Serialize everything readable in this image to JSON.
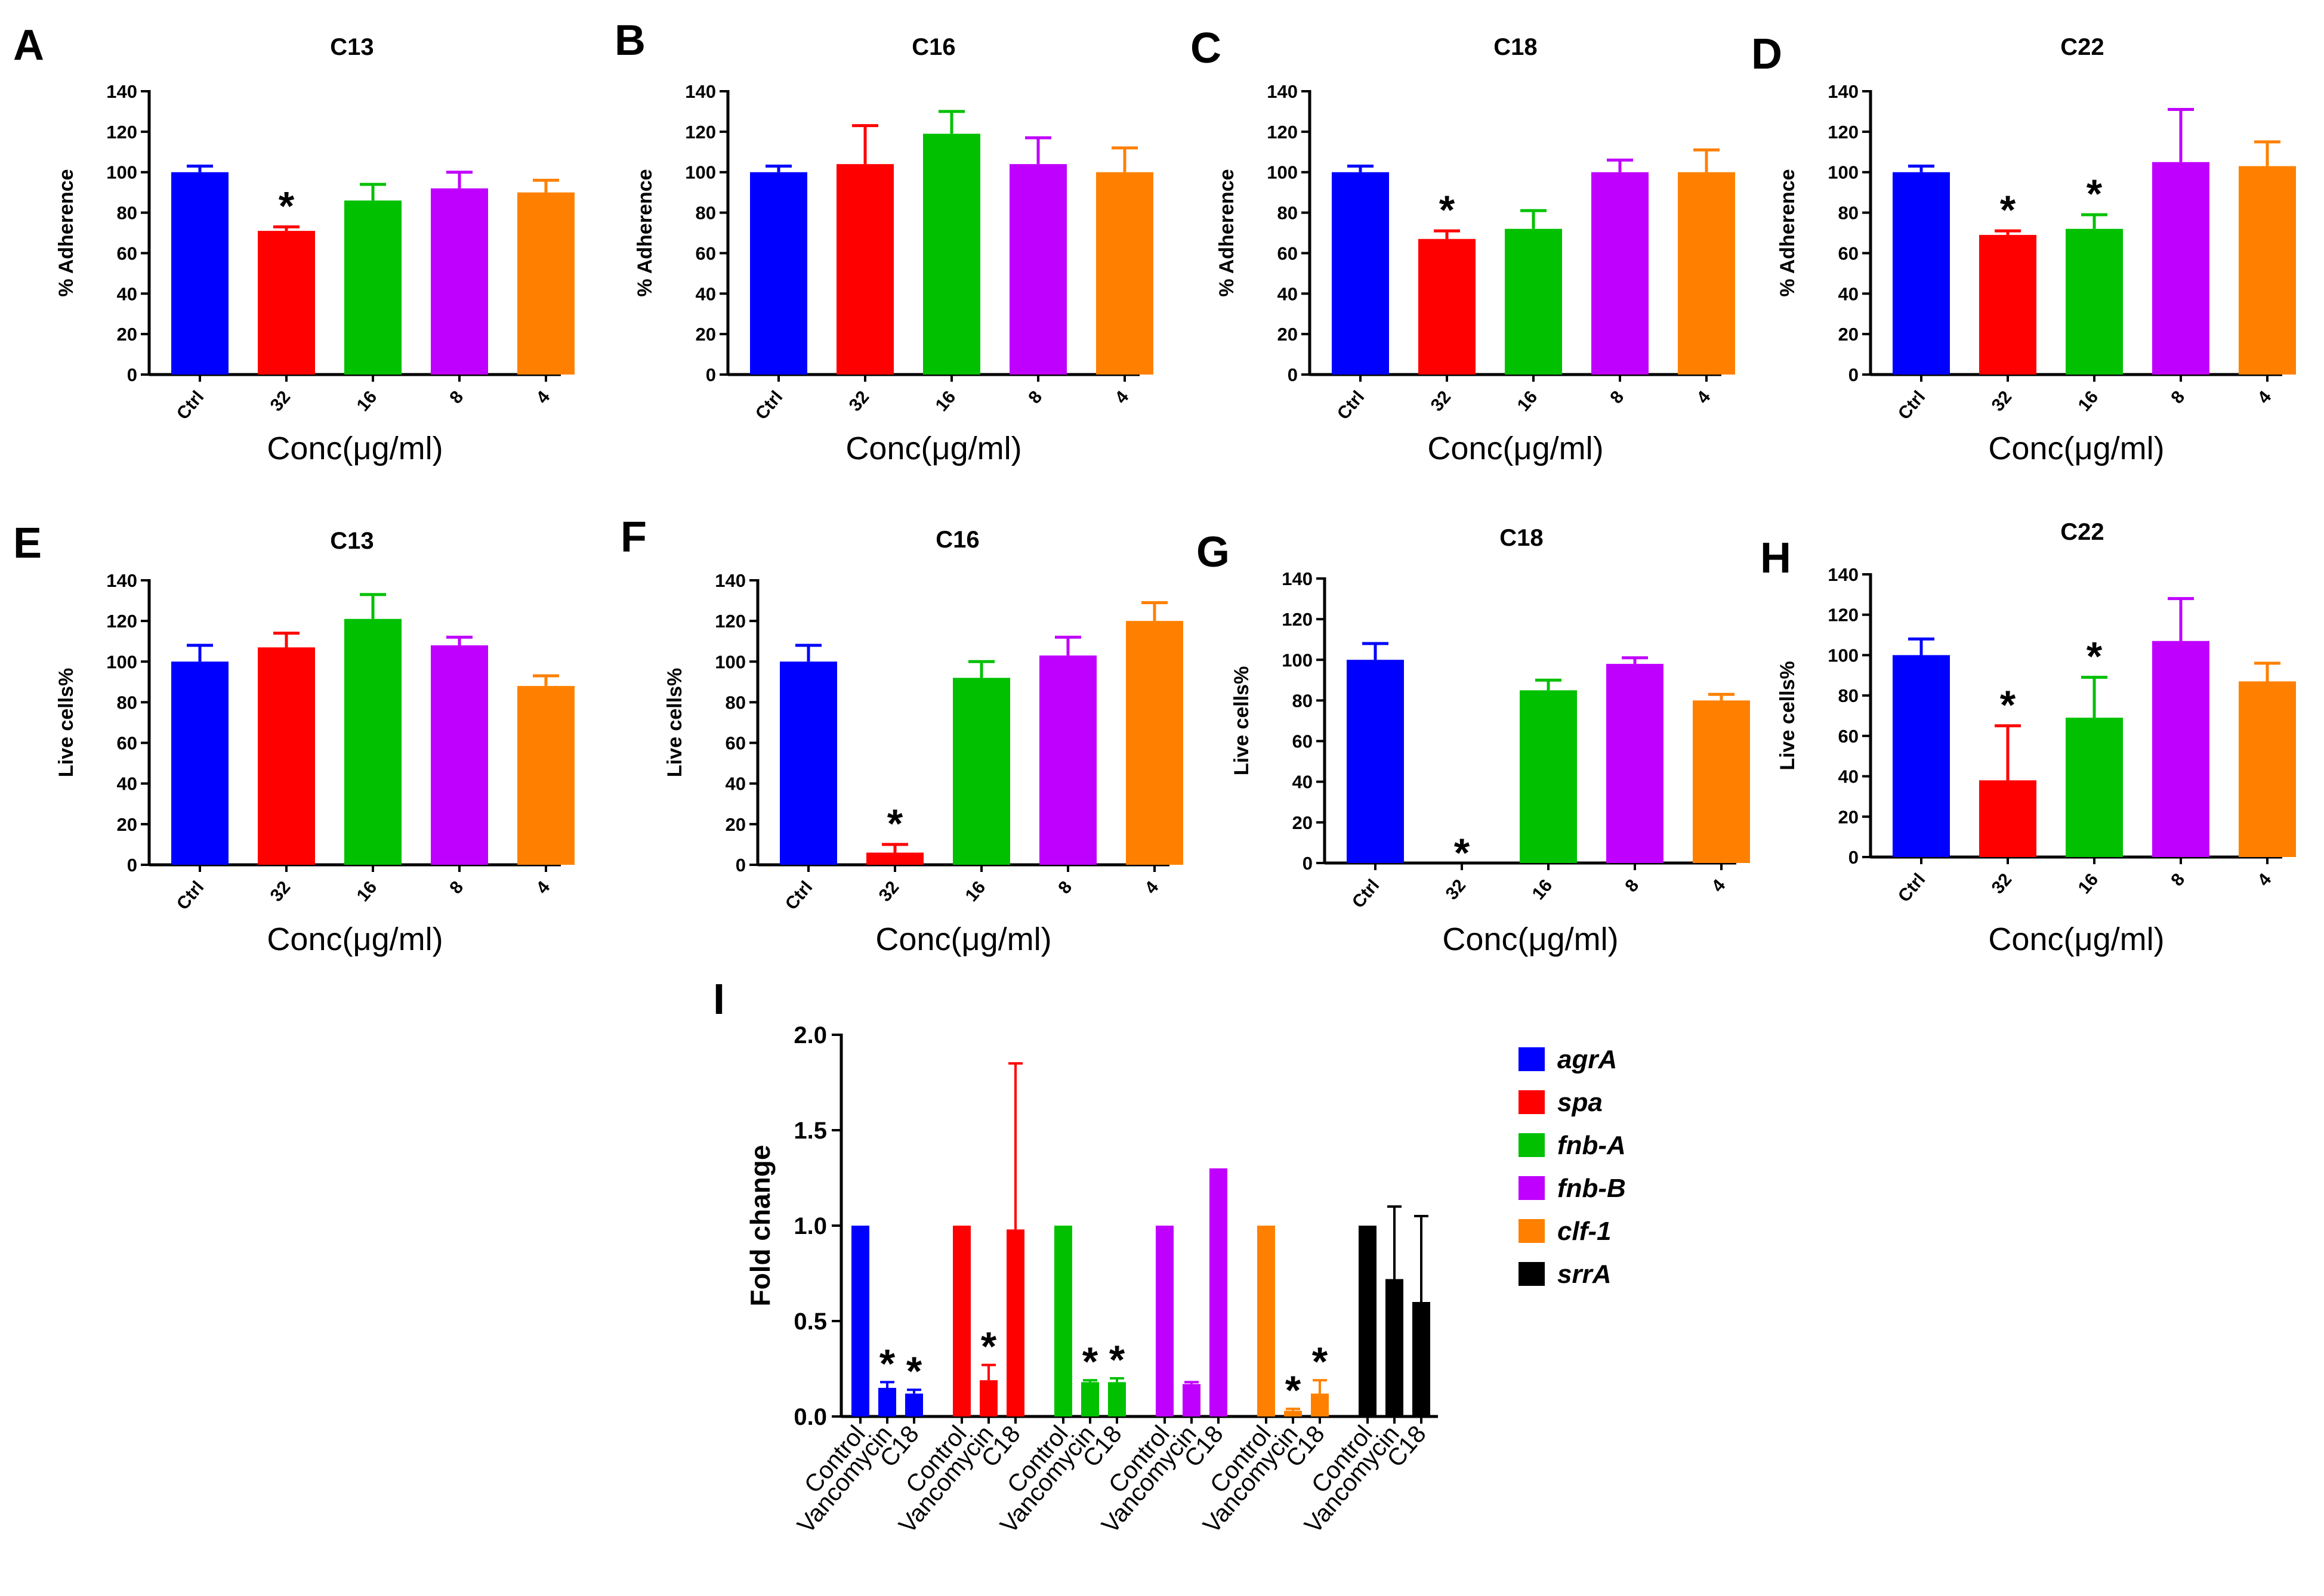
{
  "colors": {
    "blue": "#0000ff",
    "red": "#ff0000",
    "green": "#00c000",
    "magenta": "#c000ff",
    "orange": "#ff8000",
    "black": "#000000"
  },
  "chart_data": [
    {
      "id": "A",
      "panel_label": "A",
      "type": "bar",
      "title": "C13",
      "xlabel": "Conc(μg/ml)",
      "ylabel": "% Adherence",
      "ylim": [
        0,
        140
      ],
      "yticks": [
        0,
        20,
        40,
        60,
        80,
        100,
        120,
        140
      ],
      "categories": [
        "Ctrl",
        "32",
        "16",
        "8",
        "4"
      ],
      "values": [
        100,
        71,
        86,
        92,
        90
      ],
      "errors": [
        3,
        2,
        8,
        8,
        6
      ],
      "significant": [
        false,
        true,
        false,
        false,
        false
      ],
      "colors": [
        "#0000ff",
        "#ff0000",
        "#00c000",
        "#c000ff",
        "#ff8000"
      ],
      "grid": false
    },
    {
      "id": "B",
      "panel_label": "B",
      "type": "bar",
      "title": "C16",
      "xlabel": "Conc(μg/ml)",
      "ylabel": "% Adherence",
      "ylim": [
        0,
        140
      ],
      "yticks": [
        0,
        20,
        40,
        60,
        80,
        100,
        120,
        140
      ],
      "categories": [
        "Ctrl",
        "32",
        "16",
        "8",
        "4"
      ],
      "values": [
        100,
        104,
        119,
        104,
        100
      ],
      "errors": [
        3,
        19,
        11,
        13,
        12
      ],
      "significant": [
        false,
        false,
        false,
        false,
        false
      ],
      "colors": [
        "#0000ff",
        "#ff0000",
        "#00c000",
        "#c000ff",
        "#ff8000"
      ],
      "grid": false
    },
    {
      "id": "C",
      "panel_label": "C",
      "type": "bar",
      "title": "C18",
      "xlabel": "Conc(μg/ml)",
      "ylabel": "% Adherence",
      "ylim": [
        0,
        140
      ],
      "yticks": [
        0,
        20,
        40,
        60,
        80,
        100,
        120,
        140
      ],
      "categories": [
        "Ctrl",
        "32",
        "16",
        "8",
        "4"
      ],
      "values": [
        100,
        67,
        72,
        100,
        100
      ],
      "errors": [
        3,
        4,
        9,
        6,
        11
      ],
      "significant": [
        false,
        true,
        false,
        false,
        false
      ],
      "colors": [
        "#0000ff",
        "#ff0000",
        "#00c000",
        "#c000ff",
        "#ff8000"
      ],
      "grid": false
    },
    {
      "id": "D",
      "panel_label": "D",
      "type": "bar",
      "title": "C22",
      "xlabel": "Conc(μg/ml)",
      "ylabel": "% Adherence",
      "ylim": [
        0,
        140
      ],
      "yticks": [
        0,
        20,
        40,
        60,
        80,
        100,
        120,
        140
      ],
      "categories": [
        "Ctrl",
        "32",
        "16",
        "8",
        "4"
      ],
      "values": [
        100,
        69,
        72,
        105,
        103
      ],
      "errors": [
        3,
        2,
        7,
        26,
        12
      ],
      "significant": [
        false,
        true,
        true,
        false,
        false
      ],
      "colors": [
        "#0000ff",
        "#ff0000",
        "#00c000",
        "#c000ff",
        "#ff8000"
      ],
      "grid": false
    },
    {
      "id": "E",
      "panel_label": "E",
      "type": "bar",
      "title": "C13",
      "xlabel": "Conc(μg/ml)",
      "ylabel": "Live cells%",
      "ylim": [
        0,
        140
      ],
      "yticks": [
        0,
        20,
        40,
        60,
        80,
        100,
        120,
        140
      ],
      "categories": [
        "Ctrl",
        "32",
        "16",
        "8",
        "4"
      ],
      "values": [
        100,
        107,
        121,
        108,
        88
      ],
      "errors": [
        8,
        7,
        12,
        4,
        5
      ],
      "significant": [
        false,
        false,
        false,
        false,
        false
      ],
      "colors": [
        "#0000ff",
        "#ff0000",
        "#00c000",
        "#c000ff",
        "#ff8000"
      ],
      "grid": false
    },
    {
      "id": "F",
      "panel_label": "F",
      "type": "bar",
      "title": "C16",
      "xlabel": "Conc(μg/ml)",
      "ylabel": "Live cells%",
      "ylim": [
        0,
        140
      ],
      "yticks": [
        0,
        20,
        40,
        60,
        80,
        100,
        120,
        140
      ],
      "categories": [
        "Ctrl",
        "32",
        "16",
        "8",
        "4"
      ],
      "values": [
        100,
        6,
        92,
        103,
        120
      ],
      "errors": [
        8,
        4,
        8,
        9,
        9
      ],
      "significant": [
        false,
        true,
        false,
        false,
        false
      ],
      "colors": [
        "#0000ff",
        "#ff0000",
        "#00c000",
        "#c000ff",
        "#ff8000"
      ],
      "grid": false
    },
    {
      "id": "G",
      "panel_label": "G",
      "type": "bar",
      "title": "C18",
      "xlabel": "Conc(μg/ml)",
      "ylabel": "Live cells%",
      "ylim": [
        0,
        140
      ],
      "yticks": [
        0,
        20,
        40,
        60,
        80,
        100,
        120,
        140
      ],
      "categories": [
        "Ctrl",
        "32",
        "16",
        "8",
        "4"
      ],
      "values": [
        100,
        0,
        85,
        98,
        80
      ],
      "errors": [
        8,
        0,
        5,
        3,
        3
      ],
      "significant": [
        false,
        true,
        false,
        false,
        false
      ],
      "colors": [
        "#0000ff",
        "#ff0000",
        "#00c000",
        "#c000ff",
        "#ff8000"
      ],
      "grid": false
    },
    {
      "id": "H",
      "panel_label": "H",
      "type": "bar",
      "title": "C22",
      "xlabel": "Conc(μg/ml)",
      "ylabel": "Live cells%",
      "ylim": [
        0,
        140
      ],
      "yticks": [
        0,
        20,
        40,
        60,
        80,
        100,
        120,
        140
      ],
      "categories": [
        "Ctrl",
        "32",
        "16",
        "8",
        "4"
      ],
      "values": [
        100,
        38,
        69,
        107,
        87
      ],
      "errors": [
        8,
        27,
        20,
        21,
        9
      ],
      "significant": [
        false,
        true,
        true,
        false,
        false
      ],
      "colors": [
        "#0000ff",
        "#ff0000",
        "#00c000",
        "#c000ff",
        "#ff8000"
      ],
      "grid": false
    },
    {
      "id": "I",
      "panel_label": "I",
      "type": "bar",
      "title": "",
      "xlabel": "",
      "ylabel": "Fold change",
      "ylim": [
        0,
        2.0
      ],
      "yticks": [
        "0.0",
        "0.5",
        "1.0",
        "1.5",
        "2.0"
      ],
      "legend_position": "right",
      "grid": false,
      "groups": [
        {
          "name": "agrA",
          "color": "#0000ff",
          "categories": [
            "Control",
            "Vancomycin",
            "C18"
          ],
          "values": [
            1.0,
            0.15,
            0.12
          ],
          "errors": [
            0,
            0.03,
            0.02
          ],
          "significant": [
            false,
            true,
            true
          ]
        },
        {
          "name": "spa",
          "color": "#ff0000",
          "categories": [
            "Control",
            "Vancomycin",
            "C18"
          ],
          "values": [
            1.0,
            0.19,
            0.98
          ],
          "errors": [
            0,
            0.08,
            0.87
          ],
          "significant": [
            false,
            true,
            false
          ]
        },
        {
          "name": "fnb-A",
          "color": "#00c000",
          "categories": [
            "Control",
            "Vancomycin",
            "C18"
          ],
          "values": [
            1.0,
            0.18,
            0.18
          ],
          "errors": [
            0,
            0.01,
            0.02
          ],
          "significant": [
            false,
            true,
            true
          ]
        },
        {
          "name": "fnb-B",
          "color": "#c000ff",
          "categories": [
            "Control",
            "Vancomycin",
            "C18"
          ],
          "values": [
            1.0,
            0.17,
            1.3
          ],
          "errors": [
            0,
            0.01,
            0
          ],
          "significant": [
            false,
            false,
            false
          ]
        },
        {
          "name": "clf-1",
          "color": "#ff8000",
          "categories": [
            "Control",
            "Vancomycin",
            "C18"
          ],
          "values": [
            1.0,
            0.03,
            0.12
          ],
          "errors": [
            0,
            0.01,
            0.07
          ],
          "significant": [
            false,
            true,
            true
          ]
        },
        {
          "name": "srrA",
          "color": "#000000",
          "categories": [
            "Control",
            "Vancomycin",
            "C18"
          ],
          "values": [
            1.0,
            0.72,
            0.6
          ],
          "errors": [
            0,
            0.38,
            0.45
          ],
          "significant": [
            false,
            false,
            false
          ]
        }
      ],
      "significance_marker": "*"
    }
  ]
}
